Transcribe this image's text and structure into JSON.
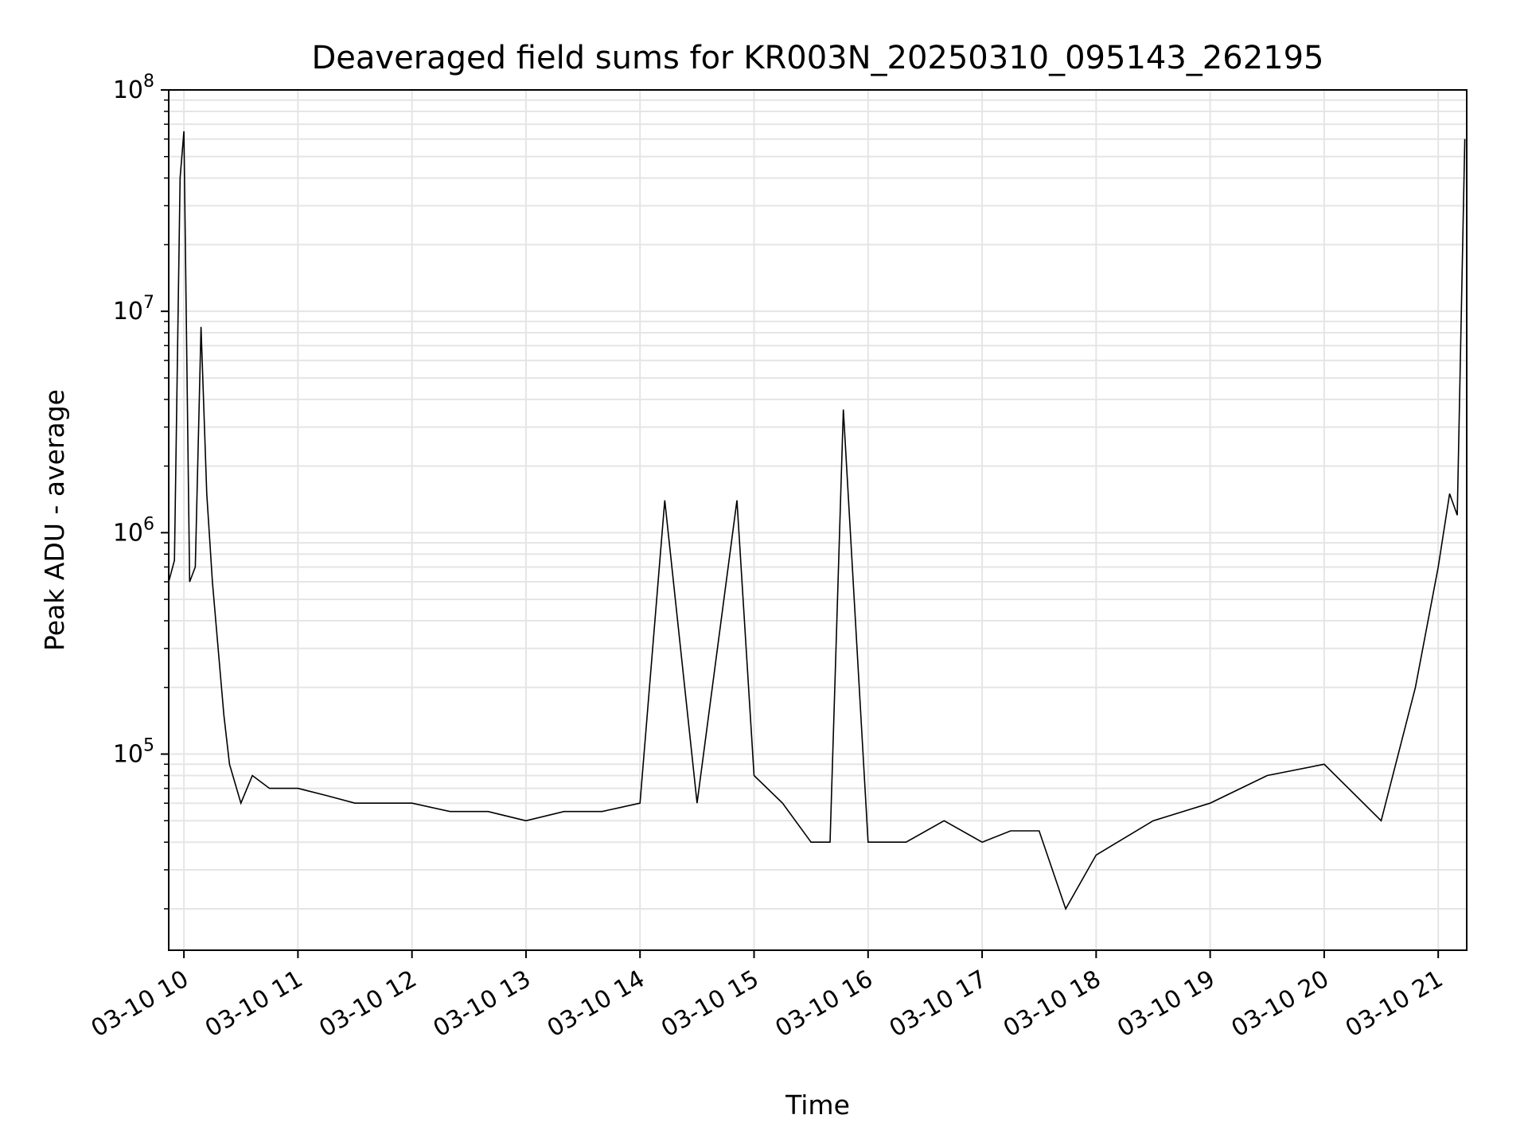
{
  "chart_data": {
    "type": "line",
    "title": "Deaveraged field sums for KR003N_20250310_095143_262195",
    "xlabel": "Time",
    "ylabel": "Peak ADU - average",
    "yscale": "log",
    "ylim": [
      13000,
      100000000
    ],
    "xlim": [
      "2025-03-10 09:52",
      "2025-03-10 21:15"
    ],
    "grid": true,
    "line_color": "#000000",
    "grid_color": "#e5e5e5",
    "x_ticks": [
      {
        "value": "2025-03-10 10:00",
        "label": "03-10 10"
      },
      {
        "value": "2025-03-10 11:00",
        "label": "03-10 11"
      },
      {
        "value": "2025-03-10 12:00",
        "label": "03-10 12"
      },
      {
        "value": "2025-03-10 13:00",
        "label": "03-10 13"
      },
      {
        "value": "2025-03-10 14:00",
        "label": "03-10 14"
      },
      {
        "value": "2025-03-10 15:00",
        "label": "03-10 15"
      },
      {
        "value": "2025-03-10 16:00",
        "label": "03-10 16"
      },
      {
        "value": "2025-03-10 17:00",
        "label": "03-10 17"
      },
      {
        "value": "2025-03-10 18:00",
        "label": "03-10 18"
      },
      {
        "value": "2025-03-10 19:00",
        "label": "03-10 19"
      },
      {
        "value": "2025-03-10 20:00",
        "label": "03-10 20"
      },
      {
        "value": "2025-03-10 21:00",
        "label": "03-10 21"
      }
    ],
    "y_ticks": [
      {
        "value": 100000,
        "base": "10",
        "exp": "5"
      },
      {
        "value": 1000000,
        "base": "10",
        "exp": "6"
      },
      {
        "value": 10000000,
        "base": "10",
        "exp": "7"
      },
      {
        "value": 100000000,
        "base": "10",
        "exp": "8"
      }
    ],
    "series": [
      {
        "x": [
          "2025-03-10 09:52",
          "2025-03-10 09:55",
          "2025-03-10 09:58",
          "2025-03-10 10:00",
          "2025-03-10 10:03",
          "2025-03-10 10:06",
          "2025-03-10 10:09",
          "2025-03-10 10:12",
          "2025-03-10 10:15",
          "2025-03-10 10:18",
          "2025-03-10 10:21",
          "2025-03-10 10:24",
          "2025-03-10 10:30",
          "2025-03-10 10:36",
          "2025-03-10 10:45",
          "2025-03-10 11:00",
          "2025-03-10 11:15",
          "2025-03-10 11:30",
          "2025-03-10 11:45",
          "2025-03-10 12:00",
          "2025-03-10 12:20",
          "2025-03-10 12:40",
          "2025-03-10 13:00",
          "2025-03-10 13:20",
          "2025-03-10 13:40",
          "2025-03-10 14:00",
          "2025-03-10 14:13",
          "2025-03-10 14:30",
          "2025-03-10 14:51",
          "2025-03-10 15:00",
          "2025-03-10 15:15",
          "2025-03-10 15:30",
          "2025-03-10 15:40",
          "2025-03-10 15:47",
          "2025-03-10 16:00",
          "2025-03-10 16:20",
          "2025-03-10 16:40",
          "2025-03-10 17:00",
          "2025-03-10 17:15",
          "2025-03-10 17:30",
          "2025-03-10 17:44",
          "2025-03-10 18:00",
          "2025-03-10 18:30",
          "2025-03-10 19:00",
          "2025-03-10 19:30",
          "2025-03-10 20:00",
          "2025-03-10 20:30",
          "2025-03-10 20:48",
          "2025-03-10 21:00",
          "2025-03-10 21:06",
          "2025-03-10 21:10",
          "2025-03-10 21:14"
        ],
        "y": [
          600000,
          750000,
          40000000,
          65000000,
          600000,
          700000,
          8500000,
          1500000,
          600000,
          300000,
          150000,
          90000,
          60000,
          80000,
          70000,
          70000,
          65000,
          60000,
          60000,
          60000,
          55000,
          55000,
          50000,
          55000,
          55000,
          60000,
          1400000,
          60000,
          1400000,
          80000,
          60000,
          40000,
          40000,
          3600000,
          40000,
          40000,
          50000,
          40000,
          45000,
          45000,
          20000,
          35000,
          50000,
          60000,
          80000,
          90000,
          50000,
          200000,
          700000,
          1500000,
          1200000,
          60000000
        ]
      }
    ]
  }
}
